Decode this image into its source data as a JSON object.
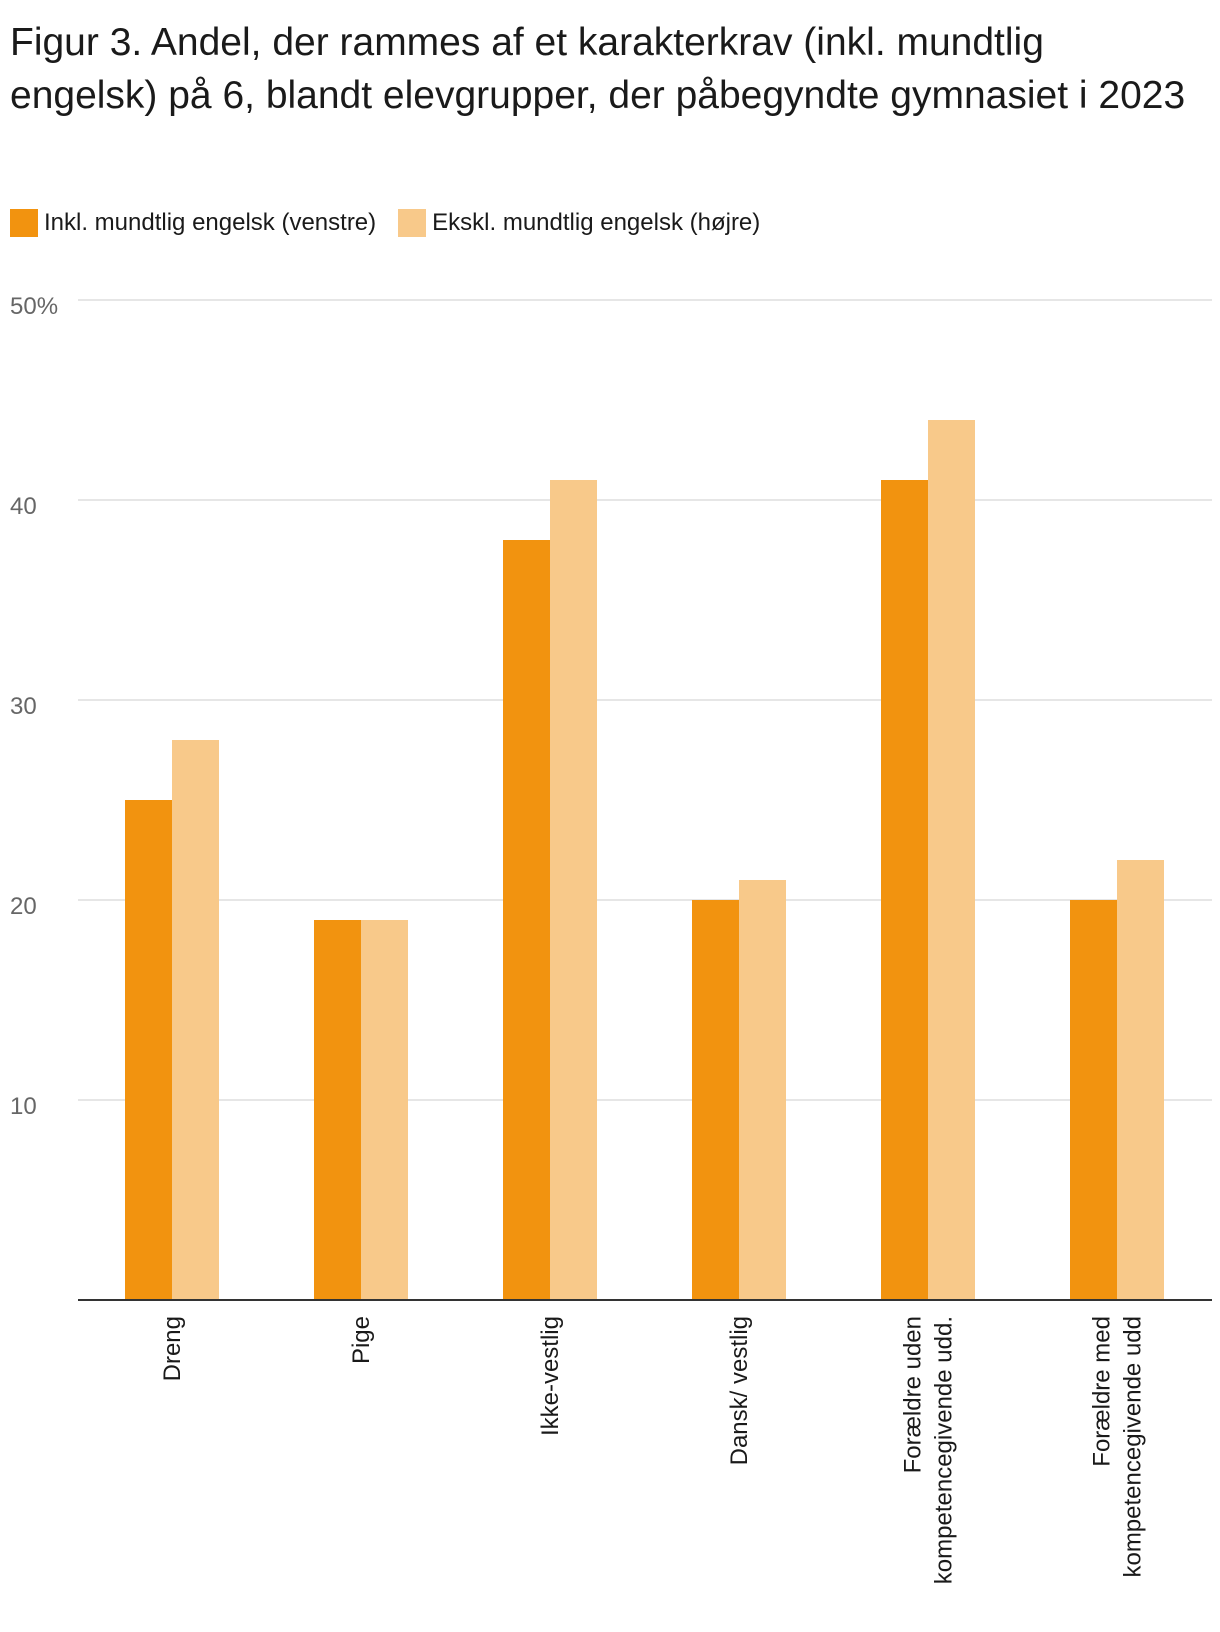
{
  "title": "Figur 3. Andel, der rammes af et karakterkrav (inkl. mundtlig engelsk) på 6, blandt elevgrupper, der påbegyndte gymnasiet i 2023",
  "legend": [
    {
      "label": "Inkl. mundtlig engelsk (venstre)",
      "color": "#f2930f"
    },
    {
      "label": "Ekskl. mundtlig engelsk (højre)",
      "color": "#f8c98a"
    }
  ],
  "chart_data": {
    "type": "bar",
    "title": "Figur 3. Andel, der rammes af et karakterkrav (inkl. mundtlig engelsk) på 6, blandt elevgrupper, der påbegyndte gymnasiet i 2023",
    "xlabel": "",
    "ylabel": "",
    "ylim": [
      0,
      50
    ],
    "yticks": [
      10,
      20,
      30,
      40,
      50
    ],
    "ytick_labels": [
      "10",
      "20",
      "30",
      "40",
      "50%"
    ],
    "grid": true,
    "legend_position": "top-left",
    "categories": [
      [
        "Dreng"
      ],
      [
        "Pige"
      ],
      [
        "Ikke-vestlig"
      ],
      [
        "Dansk/ vestlig"
      ],
      [
        "Forældre uden",
        "kompetencegivende udd."
      ],
      [
        "Forældre med",
        "kompetencegivende udd"
      ]
    ],
    "series": [
      {
        "name": "Inkl. mundtlig engelsk (venstre)",
        "color": "#f2930f",
        "values": [
          25,
          19,
          38,
          20,
          41,
          20
        ]
      },
      {
        "name": "Ekskl. mundtlig engelsk (højre)",
        "color": "#f8c98a",
        "values": [
          28,
          19,
          41,
          21,
          44,
          22
        ]
      }
    ]
  }
}
